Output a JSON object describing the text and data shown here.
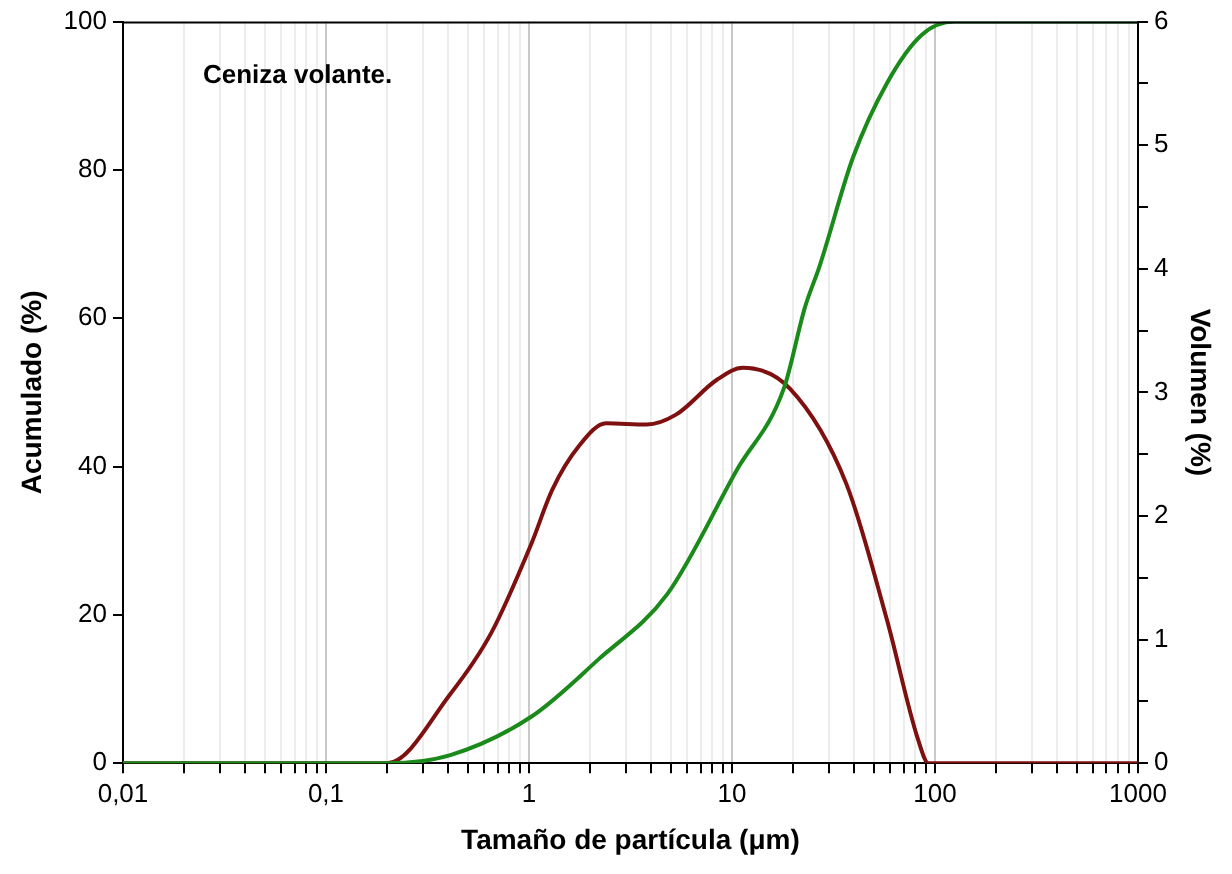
{
  "chart_data": {
    "type": "line",
    "xlabel": "Tamaño de partícula (μm)",
    "ylabel": "Acumulado (%)",
    "y2label": "Volumen (%)",
    "annotations": [
      "Ceniza volante."
    ],
    "log": "x",
    "grid": "x",
    "legend": false,
    "marker": "none",
    "line_style": "solid",
    "xlim": [
      0.01,
      1000
    ],
    "xticks": [
      {
        "value": 0.01,
        "label": "0,01"
      },
      {
        "value": 0.1,
        "label": "0,1"
      },
      1,
      10,
      100,
      1000,
      {
        "value": 0.02,
        "label": null
      },
      {
        "value": 0.03,
        "label": null
      },
      {
        "value": 0.04,
        "label": null
      },
      {
        "value": 0.05,
        "label": null
      },
      {
        "value": 0.06,
        "label": null
      },
      {
        "value": 0.07,
        "label": null
      },
      {
        "value": 0.08,
        "label": null
      },
      {
        "value": 0.09,
        "label": null
      },
      {
        "value": 0.2,
        "label": null
      },
      {
        "value": 0.3,
        "label": null
      },
      {
        "value": 0.4,
        "label": null
      },
      {
        "value": 0.5,
        "label": null
      },
      {
        "value": 0.6,
        "label": null
      },
      {
        "value": 0.7,
        "label": null
      },
      {
        "value": 0.8,
        "label": null
      },
      {
        "value": 0.9,
        "label": null
      },
      {
        "value": 2,
        "label": null
      },
      {
        "value": 3,
        "label": null
      },
      {
        "value": 4,
        "label": null
      },
      {
        "value": 5,
        "label": null
      },
      {
        "value": 6,
        "label": null
      },
      {
        "value": 7,
        "label": null
      },
      {
        "value": 8,
        "label": null
      },
      {
        "value": 9,
        "label": null
      },
      {
        "value": 20,
        "label": null
      },
      {
        "value": 30,
        "label": null
      },
      {
        "value": 40,
        "label": null
      },
      {
        "value": 50,
        "label": null
      },
      {
        "value": 60,
        "label": null
      },
      {
        "value": 70,
        "label": null
      },
      {
        "value": 80,
        "label": null
      },
      {
        "value": 90,
        "label": null
      },
      {
        "value": 200,
        "label": null
      },
      {
        "value": 300,
        "label": null
      },
      {
        "value": 400,
        "label": null
      },
      {
        "value": 500,
        "label": null
      },
      {
        "value": 600,
        "label": null
      },
      {
        "value": 700,
        "label": null
      },
      {
        "value": 800,
        "label": null
      },
      {
        "value": 900,
        "label": null
      }
    ],
    "ylim": [
      0,
      100
    ],
    "yticks": [
      0,
      20,
      40,
      60,
      80,
      100
    ],
    "y2lim": [
      0,
      6
    ],
    "y2ticks": [
      0,
      1,
      2,
      3,
      4,
      5,
      6,
      {
        "value": 0.5,
        "label": null
      },
      {
        "value": 1.5,
        "label": null
      },
      {
        "value": 2.5,
        "label": null
      },
      {
        "value": 3.5,
        "label": null
      },
      {
        "value": 4.5,
        "label": null
      },
      {
        "value": 5.5,
        "label": null
      }
    ],
    "series": [
      {
        "color": "#1a8a1a",
        "x": [
          0.01,
          0.2,
          0.41,
          1.03,
          2.2,
          4.8,
          10.6,
          18,
          22.9,
          27,
          39.5,
          58,
          86,
          125,
          1000
        ],
        "values": [
          0,
          0,
          1.1,
          6.3,
          14,
          22.8,
          39.6,
          50.5,
          61.5,
          67,
          81.7,
          91.7,
          98.2,
          100,
          100
        ]
      },
      {
        "color": "#7f1010",
        "axis": "y2",
        "x": [
          0.01,
          0.2,
          0.41,
          0.65,
          1.03,
          1.3,
          1.77,
          2.4,
          3.8,
          5.3,
          8.4,
          11.3,
          19.3,
          36.6,
          58,
          82.6,
          93,
          1000
        ],
        "values": [
          0,
          0,
          0.56,
          1.05,
          1.78,
          2.21,
          2.57,
          2.75,
          2.74,
          2.82,
          3.1,
          3.2,
          3.03,
          2.26,
          1.16,
          0.19,
          0,
          0
        ]
      }
    ]
  }
}
